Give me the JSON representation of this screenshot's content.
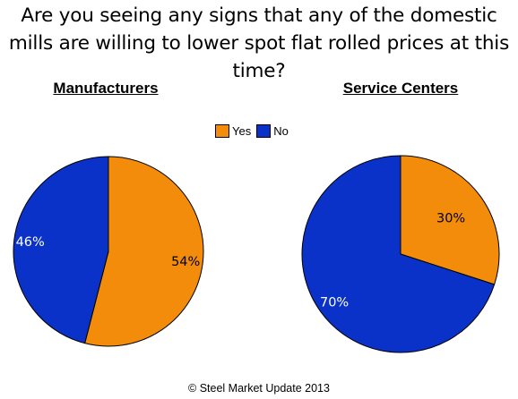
{
  "title": "Are you seeing any signs that any of the domestic mills are willing to lower spot flat rolled prices at this time?",
  "legend": [
    {
      "label": "Yes",
      "color": "#F28C0A"
    },
    {
      "label": "No",
      "color": "#0A32C8"
    }
  ],
  "chart_data": [
    {
      "type": "pie",
      "title": "Manufacturers",
      "categories": [
        "Yes",
        "No"
      ],
      "values": [
        54,
        46
      ],
      "labels": [
        "54%",
        "46%"
      ],
      "colors": [
        "#F28C0A",
        "#0A32C8"
      ]
    },
    {
      "type": "pie",
      "title": "Service Centers",
      "categories": [
        "Yes",
        "No"
      ],
      "values": [
        30,
        70
      ],
      "labels": [
        "30%",
        "70%"
      ],
      "colors": [
        "#F28C0A",
        "#0A32C8"
      ]
    }
  ],
  "footer": "© Steel Market Update 2013"
}
